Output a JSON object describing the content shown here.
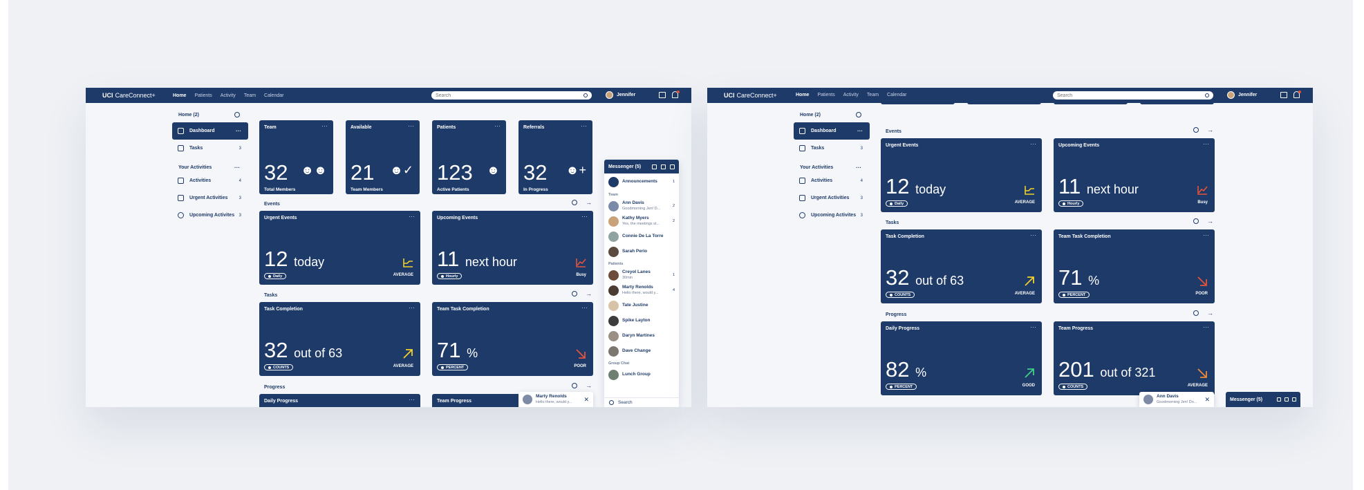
{
  "app": {
    "brand_bold": "UCI",
    "brand_rest": "CareConnect+"
  },
  "nav": [
    "Home",
    "Patients",
    "Activity",
    "Team",
    "Calendar"
  ],
  "search_placeholder": "Search",
  "user": "Jennifer",
  "sidebar": {
    "home": "Home (2)",
    "items": [
      {
        "label": "Dashboard",
        "count": ""
      },
      {
        "label": "Tasks",
        "count": "3"
      }
    ],
    "activities_title": "Your Activities",
    "activities": [
      {
        "label": "Activities",
        "count": "4"
      },
      {
        "label": "Urgent Activities",
        "count": "3"
      },
      {
        "label": "Upcoming Activites",
        "count": "3"
      }
    ]
  },
  "stats": [
    {
      "title": "Team",
      "value": "32",
      "sub": "Total Members"
    },
    {
      "title": "Available",
      "value": "21",
      "sub": "Team Members"
    },
    {
      "title": "Patients",
      "value": "123",
      "sub": "Active Patients"
    },
    {
      "title": "Referrals",
      "value": "32",
      "sub": "In Progress"
    }
  ],
  "sections": {
    "events": "Events",
    "tasks": "Tasks",
    "progress": "Progress"
  },
  "events": [
    {
      "title": "Urgent Events",
      "value": "12",
      "unit": "today",
      "pill": "Daily",
      "status": "AVERAGE",
      "color": "#f2d12b"
    },
    {
      "title": "Upcoming Events",
      "value": "11",
      "unit": "next hour",
      "pill": "Hourly",
      "status": "Busy",
      "color": "#e2533b"
    }
  ],
  "tasks": [
    {
      "title": "Task Completion",
      "value": "32",
      "unit": "out of 63",
      "pill": "COUNTS",
      "status": "AVERAGE",
      "color": "#f2d12b"
    },
    {
      "title": "Team Task Completion",
      "value": "71",
      "unit": "%",
      "pill": "PERCENT",
      "status": "POOR",
      "color": "#e2533b"
    }
  ],
  "progress": [
    {
      "title": "Daily Progress",
      "value": "82",
      "unit": "%",
      "pill": "PERCENT",
      "status": "GOOD",
      "color": "#3fd08a"
    },
    {
      "title": "Team Progress",
      "value": "201",
      "unit": "out of 321",
      "pill": "COUNTS",
      "status": "AVERAGE",
      "color": "#f08a3a"
    }
  ],
  "messenger": {
    "title": "Messenger (5)",
    "announcements": "Announcements",
    "ann_count": "1",
    "team_label": "Team",
    "team": [
      {
        "name": "Ann Davis",
        "preview": "Goodmorning Jen! D...",
        "count": "2"
      },
      {
        "name": "Kathy Myers",
        "preview": "Yes, the meetings st...",
        "count": "2"
      },
      {
        "name": "Connie De La Torre",
        "preview": "",
        "count": ""
      },
      {
        "name": "Sarah Perio",
        "preview": "",
        "count": ""
      }
    ],
    "patients_label": "Patients",
    "patients": [
      {
        "name": "Creyol Lanes",
        "preview": "30min",
        "count": "1"
      },
      {
        "name": "Marty Renolds",
        "preview": "Hello there, would y...",
        "count": "4"
      },
      {
        "name": "Tate Justine",
        "preview": "",
        "count": ""
      },
      {
        "name": "Spike Layton",
        "preview": "",
        "count": ""
      },
      {
        "name": "Daryn Martines",
        "preview": "",
        "count": ""
      },
      {
        "name": "Dave Change",
        "preview": "",
        "count": ""
      }
    ],
    "group_label": "Group Chat",
    "groups": [
      {
        "name": "Lunch Group"
      }
    ],
    "search": "Search"
  },
  "chat_popups": [
    {
      "name": "Marty Renolds",
      "preview": "Hello there, would y..."
    },
    {
      "name": "Ann Davis",
      "preview": "Goodmorning Jen! Do..."
    }
  ]
}
